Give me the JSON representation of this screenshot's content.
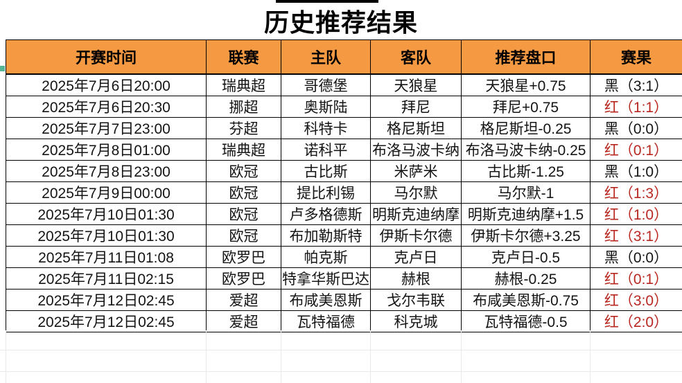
{
  "title": "历史推荐结果",
  "colors": {
    "header_bg": "#F59A43",
    "red_text": "#B8271F",
    "green_marker": "#55B796"
  },
  "table": {
    "headers": [
      "开赛时间",
      "联赛",
      "主队",
      "客队",
      "推荐盘口",
      "赛果"
    ],
    "rows": [
      {
        "time": "2025年7月6日20:00",
        "league": "瑞典超",
        "home": "哥德堡",
        "away": "天狼星",
        "handicap": "天狼星+0.75",
        "result": "黑（3:1）",
        "result_color": "black"
      },
      {
        "time": "2025年7月6日20:30",
        "league": "挪超",
        "home": "奥斯陆",
        "away": "拜尼",
        "handicap": "拜尼+0.75",
        "result": "红（1:1）",
        "result_color": "red"
      },
      {
        "time": "2025年7月7日23:00",
        "league": "芬超",
        "home": "科特卡",
        "away": "格尼斯坦",
        "handicap": "格尼斯坦-0.25",
        "result": "黑（0:0）",
        "result_color": "black"
      },
      {
        "time": "2025年7月8日01:00",
        "league": "瑞典超",
        "home": "诺科平",
        "away": "布洛马波卡纳",
        "handicap": "布洛马波卡纳-0.25",
        "result": "红（0:1）",
        "result_color": "red"
      },
      {
        "time": "2025年7月8日23:00",
        "league": "欧冠",
        "home": "古比斯",
        "away": "米萨米",
        "handicap": "古比斯-1.25",
        "result": "黑（1:0）",
        "result_color": "black"
      },
      {
        "time": "2025年7月9日00:00",
        "league": "欧冠",
        "home": "提比利锡",
        "away": "马尔默",
        "handicap": "马尔默-1",
        "result": "红（1:3）",
        "result_color": "red"
      },
      {
        "time": "2025年7月10日01:30",
        "league": "欧冠",
        "home": "卢多格德斯",
        "away": "明斯克迪纳摩",
        "handicap": "明斯克迪纳摩+1.5",
        "result": "红（1:0）",
        "result_color": "red"
      },
      {
        "time": "2025年7月10日01:30",
        "league": "欧冠",
        "home": "布加勒斯特",
        "away": "伊斯卡尔德",
        "handicap": "伊斯卡尔德+3.25",
        "result": "红（3:1）",
        "result_color": "red"
      },
      {
        "time": "2025年7月11日01:08",
        "league": "欧罗巴",
        "home": "帕克斯",
        "away": "克卢日",
        "handicap": "克卢日-0.5",
        "result": "黑（0:0）",
        "result_color": "black"
      },
      {
        "time": "2025年7月11日02:15",
        "league": "欧罗巴",
        "home": "特拿华斯巴达",
        "away": "赫根",
        "handicap": "赫根-0.25",
        "result": "红（0:1）",
        "result_color": "red"
      },
      {
        "time": "2025年7月12日02:45",
        "league": "爱超",
        "home": "布咸美恩斯",
        "away": "戈尔韦联",
        "handicap": "布咸美恩斯-0.75",
        "result": "红（3:0）",
        "result_color": "red"
      },
      {
        "time": "2025年7月12日02:45",
        "league": "爱超",
        "home": "瓦特福德",
        "away": "科克城",
        "handicap": "瓦特福德-0.5",
        "result": "红（2:0）",
        "result_color": "red"
      }
    ]
  }
}
